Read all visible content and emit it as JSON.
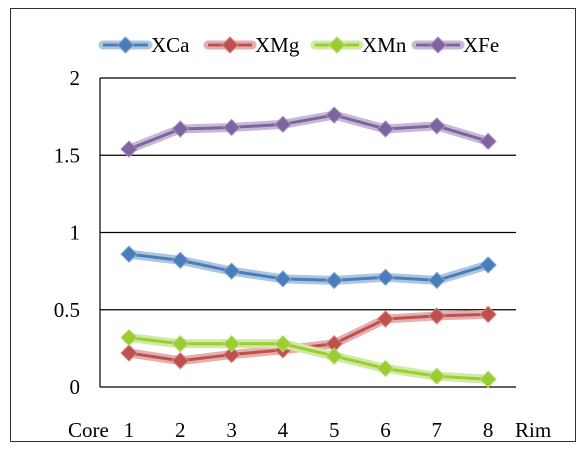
{
  "chart_data": {
    "type": "line",
    "categories": [
      "1",
      "2",
      "3",
      "4",
      "5",
      "6",
      "7",
      "8"
    ],
    "x_start_label": "Core",
    "x_end_label": "Rim",
    "ylim": [
      0,
      2
    ],
    "y_ticks": [
      "0",
      "0.5",
      "1",
      "1.5",
      "2"
    ],
    "y_tick_values": [
      0,
      0.5,
      1,
      1.5,
      2
    ],
    "grid": "horizontal",
    "legend_position": "top",
    "series": [
      {
        "name": "XCa",
        "color": "#4A7EBB",
        "marker": "diamond",
        "values": [
          0.86,
          0.82,
          0.75,
          0.7,
          0.69,
          0.71,
          0.69,
          0.79
        ]
      },
      {
        "name": "XMg",
        "color": "#C0504D",
        "marker": "diamond",
        "values": [
          0.22,
          0.17,
          0.21,
          0.24,
          0.28,
          0.44,
          0.46,
          0.47
        ]
      },
      {
        "name": "XMn",
        "color": "#9ACD32",
        "marker": "diamond",
        "values": [
          0.32,
          0.28,
          0.28,
          0.28,
          0.2,
          0.12,
          0.07,
          0.05
        ]
      },
      {
        "name": "XFe",
        "color": "#8064A2",
        "marker": "diamond",
        "values": [
          1.54,
          1.67,
          1.68,
          1.7,
          1.76,
          1.67,
          1.69,
          1.59
        ]
      }
    ]
  }
}
